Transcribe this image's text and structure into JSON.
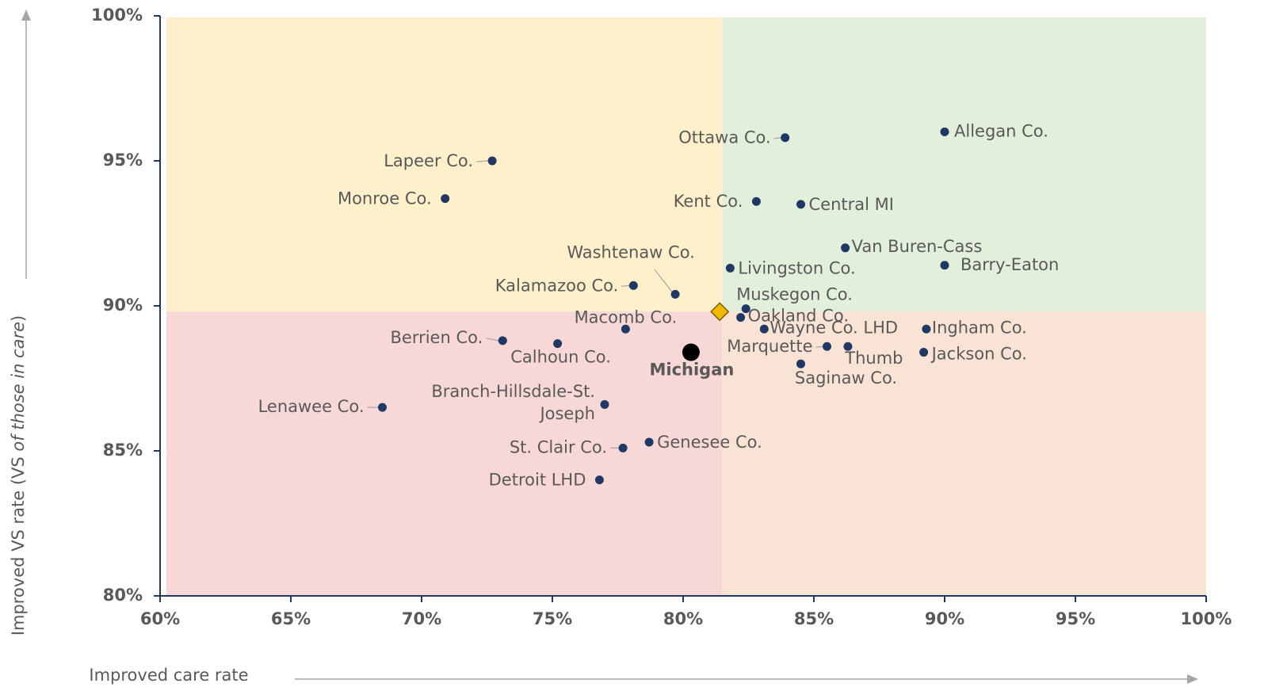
{
  "chart_data": {
    "type": "scatter",
    "xlabel": "Improved care rate",
    "ylabel_parts": [
      "Improved VS rate (VS ",
      "of those in care",
      ")"
    ],
    "xlim": [
      60,
      100
    ],
    "ylim": [
      80,
      100
    ],
    "xticks": [
      {
        "value": 60,
        "label": "60%"
      },
      {
        "value": 65,
        "label": "65%"
      },
      {
        "value": 70,
        "label": "70%"
      },
      {
        "value": 75,
        "label": "75%"
      },
      {
        "value": 80,
        "label": "80%"
      },
      {
        "value": 85,
        "label": "85%"
      },
      {
        "value": 90,
        "label": "90%"
      },
      {
        "value": 95,
        "label": "95%"
      },
      {
        "value": 100,
        "label": "100%"
      }
    ],
    "yticks": [
      {
        "value": 80,
        "label": "80%"
      },
      {
        "value": 85,
        "label": "85%"
      },
      {
        "value": 90,
        "label": "90%"
      },
      {
        "value": 95,
        "label": "95%"
      },
      {
        "value": 100,
        "label": "100%"
      }
    ],
    "quadrant_colors": {
      "top_left": "#fff0cc",
      "top_right": "#e2efda",
      "bottom_left": "#f8d7d7",
      "bottom_right": "#f9e3d5"
    },
    "point_color": "#1f3864",
    "target": {
      "x": 81.4,
      "y": 89.8,
      "color": "#f5b800"
    },
    "highlight": {
      "name": "Michigan",
      "x": 80.3,
      "y": 88.4,
      "color": "#000000"
    },
    "points": {
      "names": [
        "Allegan Co.",
        "Ottawa Co.",
        "Lapeer Co.",
        "Monroe Co.",
        "Kent Co.",
        "Central MI",
        "Van Buren-Cass",
        "Barry-Eaton",
        "Livingston Co.",
        "Kalamazoo Co.",
        "Washtenaw Co.",
        "Muskegon Co.",
        "Oakland Co.",
        "Macomb Co.",
        "Wayne Co. LHD",
        "Ingham Co.",
        "Berrien Co.",
        "Calhoun Co.",
        "Marquette",
        "Thumb",
        "Jackson Co.",
        "Saginaw Co.",
        "Lenawee Co.",
        "Branch-Hillsdale-St. Joseph",
        "Genesee Co.",
        "St. Clair Co.",
        "Detroit LHD"
      ],
      "x": [
        90.0,
        83.9,
        72.7,
        70.9,
        82.8,
        84.5,
        86.2,
        90.0,
        81.8,
        78.1,
        79.7,
        82.4,
        82.2,
        77.8,
        83.1,
        89.3,
        73.1,
        75.2,
        85.5,
        86.3,
        89.2,
        84.5,
        68.5,
        77.0,
        78.7,
        77.7,
        76.8
      ],
      "y": [
        96.0,
        95.8,
        95.0,
        93.7,
        93.6,
        93.5,
        92.0,
        91.4,
        91.3,
        90.7,
        90.4,
        89.9,
        89.6,
        89.2,
        89.2,
        89.2,
        88.8,
        88.7,
        88.6,
        88.6,
        88.4,
        88.0,
        86.5,
        86.6,
        85.3,
        85.1,
        84.0
      ]
    }
  }
}
